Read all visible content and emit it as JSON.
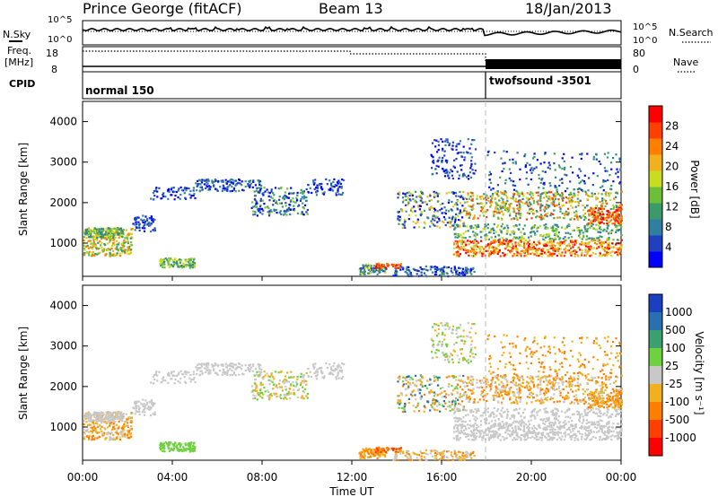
{
  "header": {
    "station": "Prince George (fitACF)",
    "beam": "Beam 13",
    "date": "18/Jan/2013"
  },
  "labels": {
    "nsky": "N.Sky",
    "nsearch": "N.Search",
    "freq": "Freq.",
    "mhz": "[MHz]",
    "cpid": "CPID",
    "nave": "Nave",
    "mode_1": "normal 150",
    "mode_2": "twofsound -3501",
    "nsky_tick_hi": "10^5",
    "nsky_tick_lo": "10^0",
    "nsearch_tick_hi": "10^5",
    "nsearch_tick_lo": "10^0",
    "freq_tick_hi": "18",
    "freq_tick_lo": "8",
    "nave_tick_hi": "80",
    "nave_tick_lo": "0"
  },
  "chart_data": [
    {
      "type": "heatmap",
      "xlabel": "",
      "ylabel": "Slant Range [km]",
      "yticks": [
        "1000",
        "2000",
        "3000",
        "4000"
      ],
      "colorbar_label": "Power [dB]",
      "colorbar_ticks": [
        "4",
        "8",
        "12",
        "16",
        "20",
        "24",
        "28"
      ],
      "colors": [
        "#0000ff",
        "#2040c0",
        "#2f7fa0",
        "#3c9a6a",
        "#6dbf3b",
        "#c8dc20",
        "#f0b020",
        "#ff8000",
        "#ff4000",
        "#ff0000"
      ]
    },
    {
      "type": "heatmap",
      "xlabel": "Time UT",
      "ylabel": "Slant Range [km]",
      "yticks": [
        "1000",
        "2000",
        "3000",
        "4000"
      ],
      "xticks": [
        "00:00",
        "04:00",
        "08:00",
        "12:00",
        "16:00",
        "20:00",
        "00:00"
      ],
      "colorbar_label": "Velocity [m s⁻¹]",
      "colorbar_ticks": [
        "1000",
        "500",
        "100",
        "25",
        "-25",
        "-100",
        "-500",
        "-1000"
      ],
      "colors": [
        "#1a40c0",
        "#2a70b0",
        "#3aa070",
        "#6fd040",
        "#c8c8c8",
        "#f0b020",
        "#ff8000",
        "#ff4000",
        "#ff0000"
      ]
    }
  ]
}
